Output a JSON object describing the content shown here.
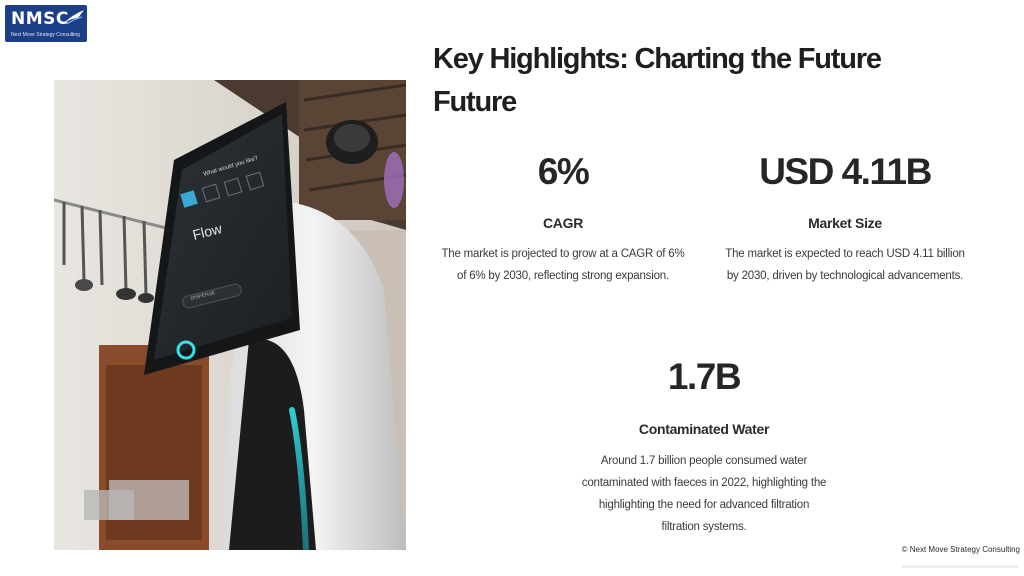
{
  "logo": {
    "text": "NMSC",
    "subtext": "Next Move Strategy Consulting"
  },
  "title": {
    "line1": "Key Highlights: Charting the Future",
    "line2": "Future"
  },
  "stats": {
    "cagr": {
      "value": "6%",
      "label": "CAGR",
      "desc_lines": [
        "The market is projected to grow at a CAGR of 6%",
        "of 6% by 2030, reflecting strong expansion."
      ]
    },
    "market": {
      "value": "USD 4.11B",
      "label": "Market Size",
      "desc_lines": [
        "The market is expected to reach USD 4.11 billion",
        "by 2030, driven by technological advancements."
      ]
    },
    "water": {
      "value": "1.7B",
      "label": "Contaminated Water",
      "desc_lines": [
        "Around 1.7 billion people consumed water",
        "contaminated with faeces in 2022, highlighting the",
        "highlighting the need for advanced filtration",
        "filtration systems."
      ]
    }
  },
  "photo": {
    "screen_heading": "What would you like?",
    "screen_mode": "Flow",
    "screen_button": "DISPENSE"
  },
  "footer": {
    "copyright": "© Next Move Strategy Consulting"
  },
  "colors": {
    "logo_bg": "#1c3e86",
    "accent_glow": "#35e0e6",
    "text_dark": "#262626"
  }
}
